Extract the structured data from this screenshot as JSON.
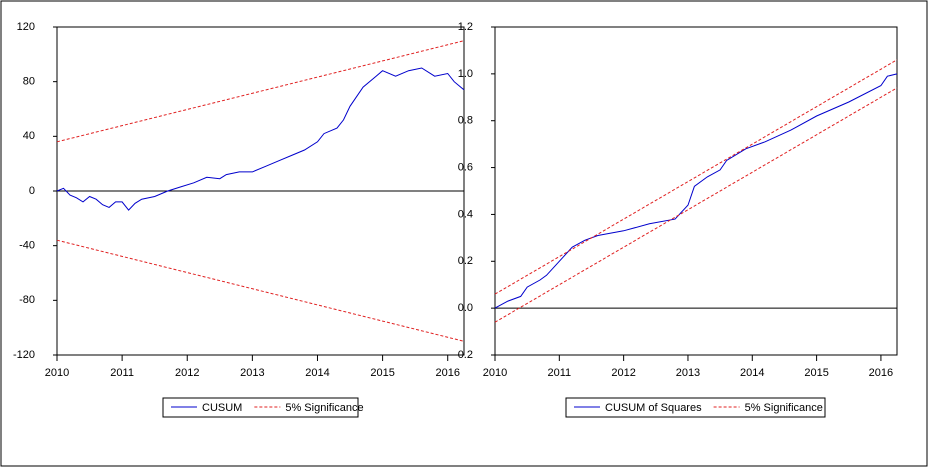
{
  "chart_data": [
    {
      "type": "line",
      "xlim": [
        2010,
        2016.25
      ],
      "xticks": [
        2010,
        2011,
        2012,
        2013,
        2014,
        2015,
        2016
      ],
      "ylim": [
        -120,
        120
      ],
      "yticks": [
        120,
        80,
        40,
        0,
        -40,
        -80,
        -120
      ],
      "zero_line": true,
      "series": [
        {
          "name": "CUSUM",
          "color": "#0000cc",
          "dash": false,
          "x": [
            2010.0,
            2010.1,
            2010.2,
            2010.3,
            2010.4,
            2010.5,
            2010.6,
            2010.7,
            2010.8,
            2010.9,
            2011.0,
            2011.1,
            2011.2,
            2011.3,
            2011.5,
            2011.7,
            2011.9,
            2012.1,
            2012.3,
            2012.5,
            2012.6,
            2012.8,
            2013.0,
            2013.2,
            2013.4,
            2013.6,
            2013.8,
            2014.0,
            2014.1,
            2014.3,
            2014.4,
            2014.5,
            2014.7,
            2014.9,
            2015.0,
            2015.2,
            2015.4,
            2015.6,
            2015.8,
            2016.0,
            2016.1,
            2016.2,
            2016.25
          ],
          "values": [
            0,
            2,
            -3,
            -5,
            -8,
            -4,
            -6,
            -10,
            -12,
            -8,
            -8,
            -14,
            -9,
            -6,
            -4,
            0,
            3,
            6,
            10,
            9,
            12,
            14,
            14,
            18,
            22,
            26,
            30,
            36,
            42,
            46,
            52,
            62,
            76,
            84,
            88,
            84,
            88,
            90,
            84,
            86,
            80,
            76,
            74
          ]
        },
        {
          "name": "5% Significance",
          "color": "#e02020",
          "dash": true,
          "x": [
            2010,
            2016.25
          ],
          "values": [
            36,
            110
          ]
        },
        {
          "color": "#e02020",
          "dash": true,
          "x": [
            2010,
            2016.25
          ],
          "values": [
            -36,
            -110
          ]
        }
      ]
    },
    {
      "type": "line",
      "xlim": [
        2010,
        2016.25
      ],
      "xticks": [
        2010,
        2011,
        2012,
        2013,
        2014,
        2015,
        2016
      ],
      "ylim": [
        -0.2,
        1.2
      ],
      "yticks": [
        1.2,
        {
          "value": 1.0,
          "label": "1.0"
        },
        0.8,
        0.6,
        0.4,
        0.2,
        {
          "value": 0.0,
          "label": "0.0"
        },
        -0.2
      ],
      "zero_line": true,
      "series": [
        {
          "name": "CUSUM of Squares",
          "color": "#0000cc",
          "dash": false,
          "x": [
            2010.0,
            2010.2,
            2010.4,
            2010.5,
            2010.7,
            2010.8,
            2011.0,
            2011.2,
            2011.4,
            2011.6,
            2012.0,
            2012.4,
            2012.8,
            2012.9,
            2013.0,
            2013.1,
            2013.3,
            2013.5,
            2013.6,
            2013.9,
            2014.2,
            2014.6,
            2015.0,
            2015.5,
            2016.0,
            2016.1,
            2016.25
          ],
          "values": [
            0,
            0.03,
            0.05,
            0.09,
            0.12,
            0.14,
            0.2,
            0.26,
            0.29,
            0.31,
            0.33,
            0.36,
            0.38,
            0.41,
            0.44,
            0.52,
            0.56,
            0.59,
            0.63,
            0.68,
            0.71,
            0.76,
            0.82,
            0.88,
            0.95,
            0.99,
            1.0
          ]
        },
        {
          "name": "5% Significance",
          "color": "#e02020",
          "dash": true,
          "x": [
            2010,
            2016.25
          ],
          "values": [
            0.06,
            1.06
          ]
        },
        {
          "color": "#e02020",
          "dash": true,
          "x": [
            2010,
            2016.25
          ],
          "values": [
            -0.06,
            0.94
          ]
        }
      ]
    }
  ]
}
